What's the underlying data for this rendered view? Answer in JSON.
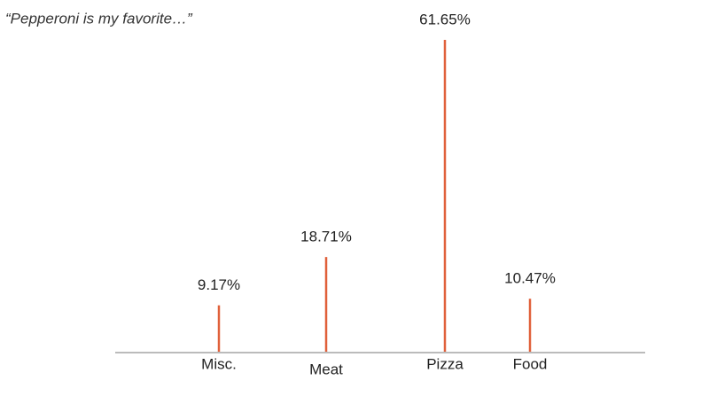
{
  "chart_data": {
    "type": "lollipop",
    "title": "“Pepperoni is my favorite…”",
    "categories": [
      "Misc.",
      "Meat",
      "Pizza",
      "Food"
    ],
    "values": [
      9.17,
      18.71,
      61.65,
      10.47
    ],
    "value_labels": [
      "9.17%",
      "18.71%",
      "61.65%",
      "10.47%"
    ],
    "color": "#e0603a"
  }
}
